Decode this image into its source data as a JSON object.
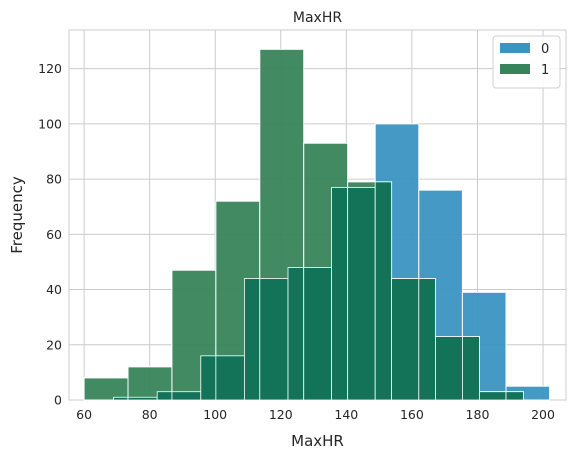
{
  "chart_data": {
    "type": "histogram",
    "title": "MaxHR",
    "xlabel": "MaxHR",
    "ylabel": "Frequency",
    "xlim": [
      55.4,
      207
    ],
    "ylim": [
      0,
      134
    ],
    "xticks": [
      60,
      80,
      100,
      120,
      140,
      160,
      180,
      200
    ],
    "yticks": [
      0,
      20,
      40,
      60,
      80,
      100,
      120
    ],
    "grid": true,
    "legend": "top-right",
    "colors": {
      "0": "#3a95c2",
      "1": "#37845a",
      "overlap": "#137358"
    },
    "series": [
      {
        "name": "0",
        "color": "#3a95c2",
        "bins": [
          [
            69,
            82.3,
            1
          ],
          [
            82.3,
            95.6,
            3
          ],
          [
            95.6,
            108.9,
            16
          ],
          [
            108.9,
            122.2,
            44
          ],
          [
            122.2,
            135.5,
            48
          ],
          [
            135.5,
            148.8,
            77
          ],
          [
            148.8,
            162.1,
            100
          ],
          [
            162.1,
            175.4,
            76
          ],
          [
            175.4,
            188.7,
            39
          ],
          [
            188.7,
            202,
            5
          ]
        ]
      },
      {
        "name": "1",
        "color": "#37845a",
        "bins": [
          [
            60,
            73.4,
            8
          ],
          [
            73.4,
            86.8,
            12
          ],
          [
            86.8,
            100.2,
            47
          ],
          [
            100.2,
            113.6,
            72
          ],
          [
            113.6,
            127,
            127
          ],
          [
            127,
            140.4,
            93
          ],
          [
            140.4,
            153.8,
            79
          ],
          [
            153.8,
            167.2,
            44
          ],
          [
            167.2,
            180.6,
            23
          ],
          [
            180.6,
            194,
            3
          ]
        ]
      }
    ]
  }
}
